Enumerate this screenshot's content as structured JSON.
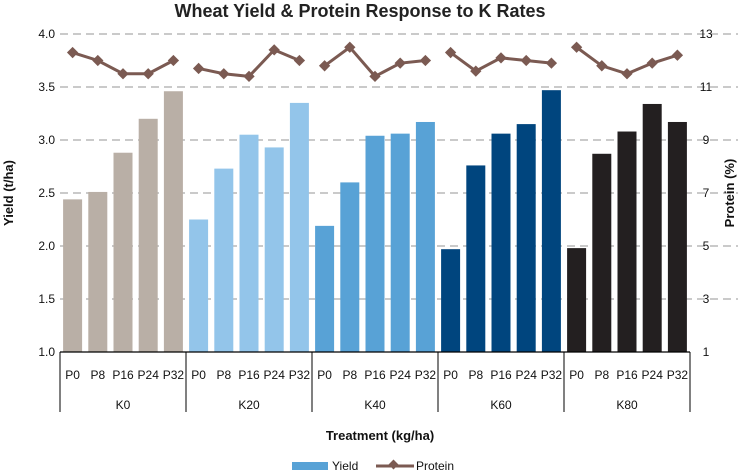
{
  "chart_data": {
    "type": "bar",
    "title": "Wheat Yield & Protein Response to K Rates",
    "xlabel": "Treatment (kg/ha)",
    "ylabel": "Yield (t/ha)",
    "y2label": "Protein (%)",
    "ylim": [
      1.0,
      4.0
    ],
    "y2lim": [
      1,
      13
    ],
    "yticks": [
      "1.0",
      "1.5",
      "2.0",
      "2.5",
      "3.0",
      "3.5",
      "4.0"
    ],
    "y2ticks": [
      "1",
      "3",
      "5",
      "7",
      "9",
      "11",
      "13"
    ],
    "groups": [
      "K0",
      "K20",
      "K40",
      "K60",
      "K80"
    ],
    "subcategories": [
      "P0",
      "P8",
      "P16",
      "P24",
      "P32"
    ],
    "group_colors": [
      "#b9afa6",
      "#93c5ea",
      "#58a2d6",
      "#00457e",
      "#231f20"
    ],
    "series": [
      {
        "name": "Yield",
        "type": "bar",
        "color": "#58a2d6",
        "values": [
          [
            2.44,
            2.51,
            2.88,
            3.2,
            3.46
          ],
          [
            2.25,
            2.73,
            3.05,
            2.93,
            3.35
          ],
          [
            2.19,
            2.6,
            3.04,
            3.06,
            3.17
          ],
          [
            1.97,
            2.76,
            3.06,
            3.15,
            3.47
          ],
          [
            1.98,
            2.87,
            3.08,
            3.34,
            3.17
          ]
        ]
      },
      {
        "name": "Protein",
        "type": "line",
        "color": "#7b5a52",
        "values": [
          [
            12.3,
            12.0,
            11.5,
            11.5,
            12.0
          ],
          [
            11.7,
            11.5,
            11.4,
            12.4,
            12.0
          ],
          [
            11.8,
            12.5,
            11.4,
            11.9,
            12.0
          ],
          [
            12.3,
            11.6,
            12.1,
            12.0,
            11.9
          ],
          [
            12.5,
            11.8,
            11.5,
            11.9,
            12.2
          ]
        ]
      }
    ],
    "legend": [
      "Yield",
      "Protein"
    ],
    "legend_position": "bottom-center",
    "grid": true
  }
}
